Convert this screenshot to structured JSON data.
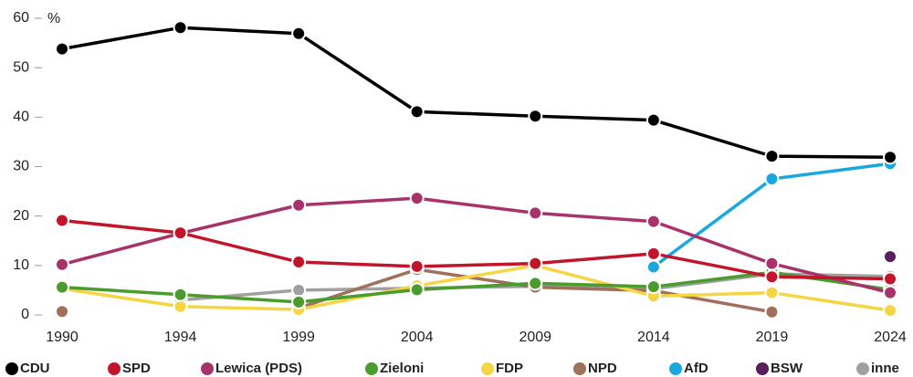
{
  "chart_data": {
    "type": "line",
    "y_unit": "%",
    "categories": [
      "1990",
      "1994",
      "1999",
      "2004",
      "2009",
      "2014",
      "2019",
      "2024"
    ],
    "ylim": [
      0,
      60
    ],
    "yticks": [
      0,
      10,
      20,
      30,
      40,
      50,
      60
    ],
    "series": [
      {
        "name": "CDU",
        "color": "#000000",
        "values": [
          53.8,
          58.1,
          56.9,
          41.1,
          40.2,
          39.4,
          32.1,
          31.9
        ]
      },
      {
        "name": "SPD",
        "color": "#c0152a",
        "values": [
          19.1,
          16.6,
          10.7,
          9.8,
          10.4,
          12.4,
          7.7,
          7.3
        ]
      },
      {
        "name": "Lewica (PDS)",
        "color": "#a8336b",
        "values": [
          10.2,
          16.5,
          22.2,
          23.6,
          20.6,
          18.9,
          10.4,
          4.5
        ]
      },
      {
        "name": "Zieloni",
        "color": "#4a9c2e",
        "values": [
          5.6,
          4.1,
          2.6,
          5.1,
          6.4,
          5.7,
          8.6,
          5.1
        ]
      },
      {
        "name": "FDP",
        "color": "#f5d543",
        "values": [
          5.3,
          1.7,
          1.1,
          5.9,
          10.0,
          3.8,
          4.5,
          0.9
        ]
      },
      {
        "name": "NPD",
        "color": "#a0705a",
        "values": [
          0.7,
          null,
          1.4,
          9.2,
          5.6,
          4.9,
          0.6,
          null
        ]
      },
      {
        "name": "AfD",
        "color": "#1aa7e0",
        "values": [
          null,
          null,
          null,
          null,
          null,
          9.7,
          27.5,
          30.6
        ]
      },
      {
        "name": "BSW",
        "color": "#5a1e5c",
        "values": [
          null,
          null,
          null,
          null,
          null,
          null,
          null,
          11.8
        ]
      },
      {
        "name": "inne",
        "color": "#a0a0a0",
        "values": [
          null,
          3.0,
          5.0,
          5.4,
          5.8,
          5.3,
          8.3,
          7.8
        ]
      }
    ]
  }
}
